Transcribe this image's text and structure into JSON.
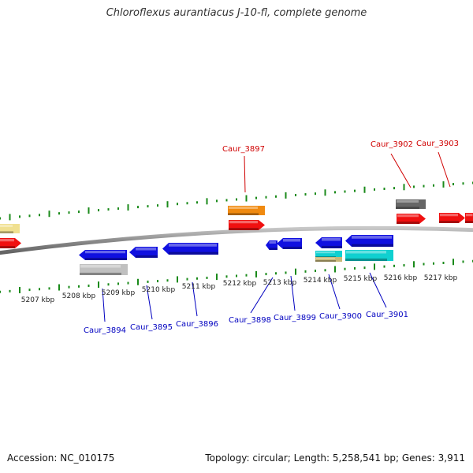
{
  "title": "Chloroflexus aurantiacus J-10-fl, complete genome",
  "footer": {
    "accession": "Accession: NC_010175",
    "summary": "Topology: circular; Length: 5,258,541 bp; Genes: 3,911"
  },
  "colors": {
    "backbone": "#8a8a8a",
    "tick": "#1a8a1a",
    "forward_label": "#d00000",
    "reverse_label": "#0000c0",
    "blue": "#1010e0",
    "red": "#f01010",
    "orange": "#f08a10",
    "cyan": "#10d0d0",
    "gray": "#666666",
    "lightgray": "#c0c0c0",
    "khaki": "#f0e090",
    "tan": "#c8b878"
  },
  "scale_labels": [
    "5207 kbp",
    "5208 kbp",
    "5209 kbp",
    "5210 kbp",
    "5211 kbp",
    "5212 kbp",
    "5213 kbp",
    "5214 kbp",
    "5215 kbp",
    "5216 kbp",
    "5217 kbp"
  ],
  "forward_gene_labels": [
    "Caur_3897",
    "Caur_3902",
    "Caur_3903"
  ],
  "reverse_gene_labels": [
    "Caur_3894",
    "Caur_3895",
    "Caur_3896",
    "Caur_3898",
    "Caur_3899",
    "Caur_3900",
    "Caur_3901"
  ]
}
